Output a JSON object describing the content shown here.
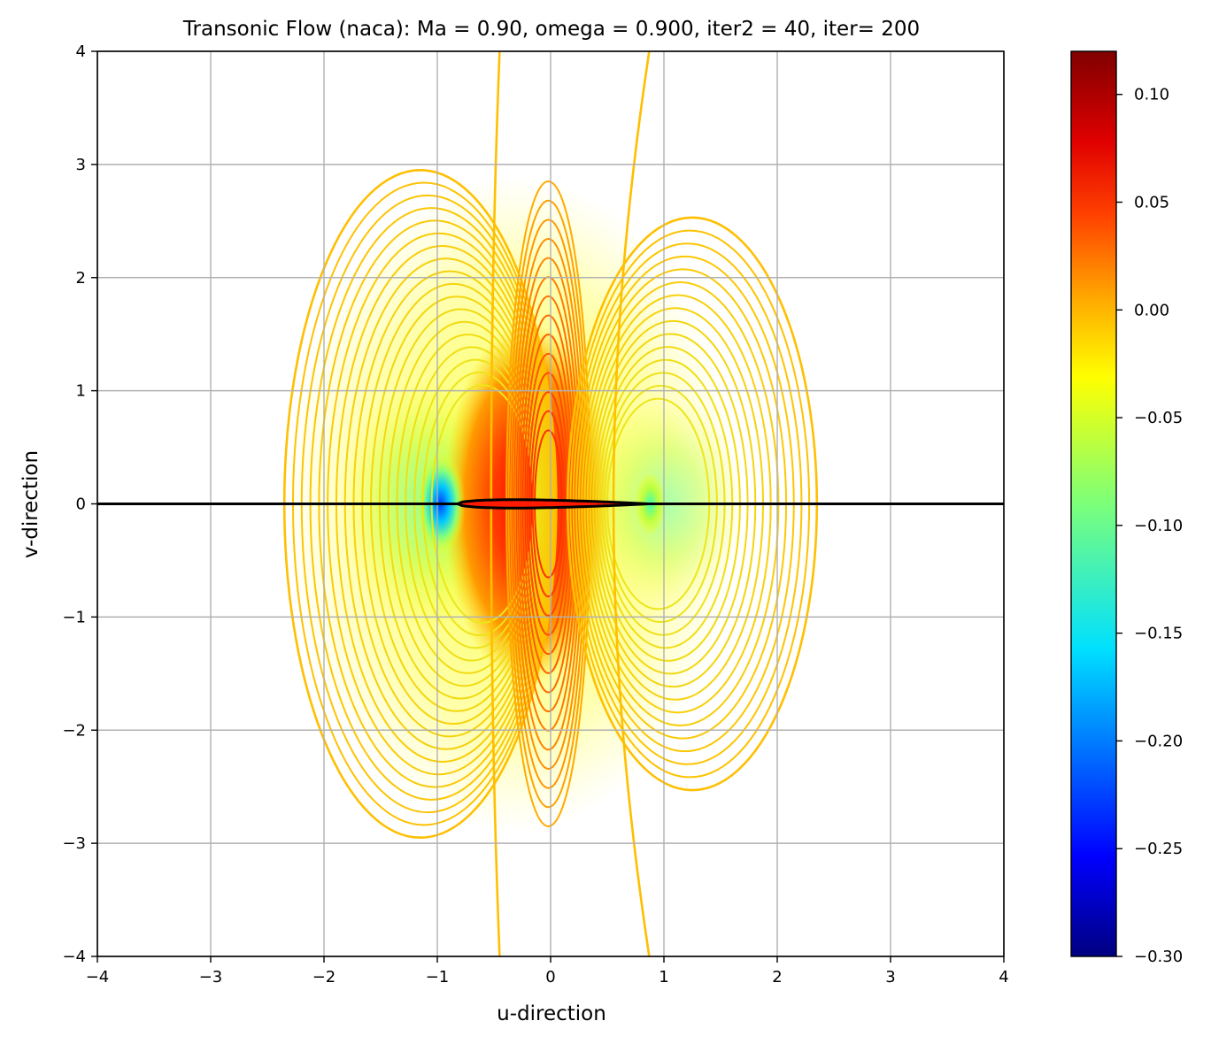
{
  "chart_data": {
    "type": "contour",
    "title": "Transonic Flow (naca): Ma = 0.90, omega = 0.900, iter2 = 40, iter= 200",
    "xlabel": "u-direction",
    "ylabel": "v-direction",
    "xlim": [
      -4,
      4
    ],
    "ylim": [
      -4,
      4
    ],
    "grid": true,
    "xticks": [
      -4,
      -3,
      -2,
      -1,
      0,
      1,
      2,
      3,
      4
    ],
    "yticks": [
      -4,
      -3,
      -2,
      -1,
      0,
      1,
      2,
      3,
      4
    ],
    "xtick_labels": [
      "−4",
      "−3",
      "−2",
      "−1",
      "0",
      "1",
      "2",
      "3",
      "4"
    ],
    "ytick_labels": [
      "−4",
      "−3",
      "−2",
      "−1",
      "0",
      "1",
      "2",
      "3",
      "4"
    ],
    "colormap": "jet",
    "colorbar": {
      "range": [
        -0.3,
        0.12
      ],
      "ticks": [
        0.1,
        0.05,
        0.0,
        -0.05,
        -0.1,
        -0.15,
        -0.2,
        -0.25,
        -0.3
      ],
      "tick_labels": [
        "0.10",
        "0.05",
        "0.00",
        "−0.05",
        "−0.10",
        "−0.15",
        "−0.20",
        "−0.25",
        "−0.30"
      ]
    },
    "features": {
      "airfoil": {
        "leading_edge": [
          -0.82,
          0.0
        ],
        "trailing_edge": [
          0.85,
          0.0
        ],
        "max_half_thickness": 0.09
      },
      "centerline_y": 0.0,
      "low_pressure_region_center": [
        -0.97,
        0.0
      ],
      "high_pressure_region_center": [
        -0.2,
        0.0
      ],
      "upstream_contour_outer_extent": [
        -2.35,
        2.95
      ],
      "downstream_contour_outer_extent": [
        2.35,
        2.53
      ],
      "zero_level_lines_x_at_top": [
        -0.45,
        0.87
      ]
    },
    "colors": {
      "frame": "#000000",
      "grid": "#b0b0b0",
      "outer_contour": "#ffbf00",
      "airfoil": "#000000"
    }
  }
}
